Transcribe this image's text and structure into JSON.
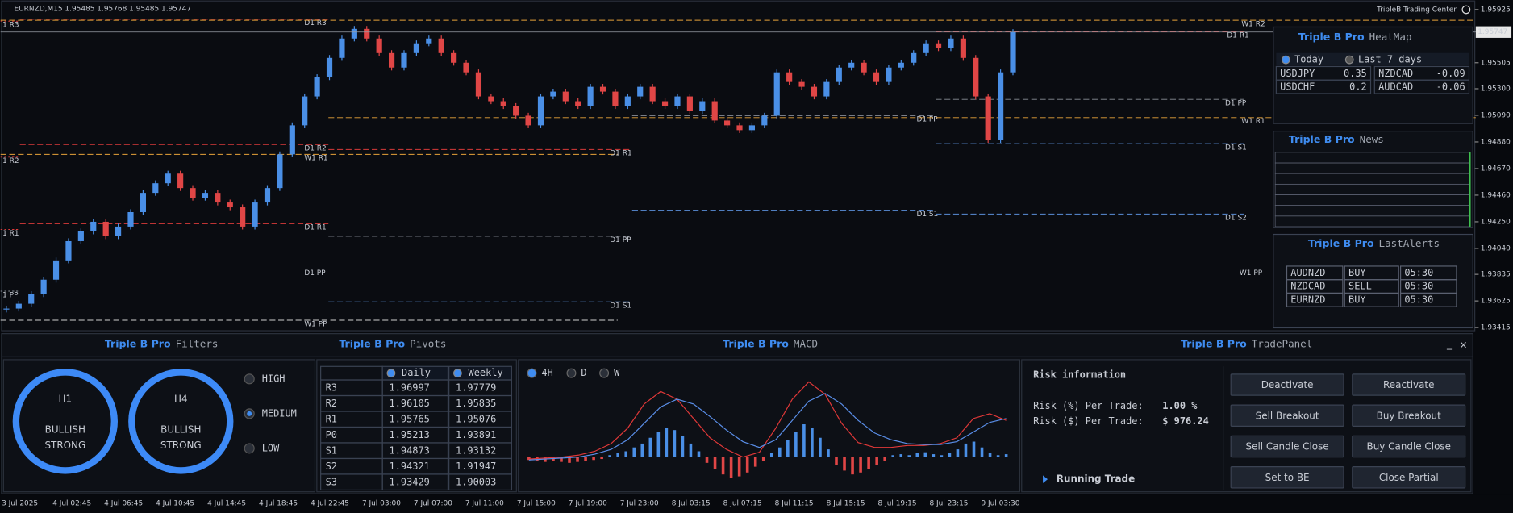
{
  "chart_header": "EURNZD,M15 1.95485 1.95768 1.95485 1.95747",
  "brand": "TripleB Trading Center",
  "price_chart": {
    "type": "candlestick",
    "closes": [
      1.93565,
      1.93603,
      1.93679,
      1.93793,
      1.93945,
      1.94097,
      1.94174,
      1.9425,
      1.94136,
      1.94212,
      1.94326,
      1.94478,
      1.94554,
      1.9463,
      1.94516,
      1.9444,
      1.94478,
      1.94402,
      1.94364,
      1.94212,
      1.94402,
      1.94516,
      1.94782,
      1.95011,
      1.95239,
      1.95391,
      1.95543,
      1.95696,
      1.95772,
      1.95696,
      1.95581,
      1.95467,
      1.95581,
      1.95658,
      1.95696,
      1.95581,
      1.95505,
      1.95429,
      1.95239,
      1.95201,
      1.95163,
      1.95087,
      1.95011,
      1.95239,
      1.95277,
      1.95201,
      1.95163,
      1.95315,
      1.95277,
      1.95163,
      1.95239,
      1.95315,
      1.95201,
      1.95163,
      1.95239,
      1.95125,
      1.95201,
      1.95049,
      1.95011,
      1.94973,
      1.95011,
      1.95087,
      1.95429,
      1.95353,
      1.95315,
      1.95239,
      1.95353,
      1.95467,
      1.95505,
      1.95429,
      1.95353,
      1.95467,
      1.95505,
      1.95581,
      1.95658,
      1.9562,
      1.95696,
      1.95543,
      1.95239,
      1.94896,
      1.95429,
      1.95747
    ],
    "up_color": "#4a8fe6",
    "down_color": "#e04646",
    "ylim": [
      1.9339,
      1.96
    ],
    "yticks": [
      1.95925,
      1.95505,
      {
        "value": 1.953,
        "label": "1.95300"
      },
      {
        "value": 1.9509,
        "label": "1.95090"
      },
      {
        "value": 1.9488,
        "label": "1.94880"
      },
      {
        "value": 1.9467,
        "label": "1.94670"
      },
      {
        "value": 1.9446,
        "label": "1.94460"
      },
      {
        "value": 1.9425,
        "label": "1.94250"
      },
      {
        "value": 1.9404,
        "label": "1.94040"
      },
      1.93835,
      1.93625,
      1.93415
    ],
    "last_price": 1.95747,
    "x_labels": [
      "3 Jul 2025",
      "4 Jul 02:45",
      "4 Jul 06:45",
      "4 Jul 10:45",
      "4 Jul 14:45",
      "4 Jul 18:45",
      "4 Jul 22:45",
      "7 Jul 03:00",
      "7 Jul 07:00",
      "7 Jul 11:00",
      "7 Jul 15:00",
      "7 Jul 19:00",
      "7 Jul 23:00",
      "8 Jul 03:15",
      "8 Jul 07:15",
      "8 Jul 11:15",
      "8 Jul 15:15",
      "8 Jul 19:15",
      "8 Jul 23:15",
      "9 Jul 03:30"
    ],
    "levels": [
      {
        "label": "1 R3",
        "price": 1.95833,
        "color": "#d93a3a"
      },
      {
        "label": "1 R2",
        "price": 1.9476,
        "color": "#d93a3a"
      },
      {
        "label": "1 R1",
        "price": 1.94189,
        "color": "#d93a3a"
      },
      {
        "label": "1 PP",
        "price": 1.93702,
        "color": "#8a8f98"
      },
      {
        "label": "D1 R3",
        "price": 1.95848,
        "color": "#d93a3a"
      },
      {
        "label": "D1 R2",
        "price": 1.94859,
        "color": "#d93a3a"
      },
      {
        "label": "D1 R1",
        "price": 1.94234,
        "color": "#d93a3a"
      },
      {
        "label": "D1 PP",
        "price": 1.93877,
        "color": "#8a8f98"
      },
      {
        "label": "W1 R1",
        "price": 1.94782,
        "color": "#e8a23a"
      },
      {
        "label": "W1 PP",
        "price": 1.93473,
        "color": "#d0d0d0"
      },
      {
        "label": "D1 R1",
        "price": 1.9482,
        "color": "#d93a3a"
      },
      {
        "label": "D1 PP",
        "price": 1.94136,
        "color": "#8a8f98"
      },
      {
        "label": "D1 S1",
        "price": 1.93618,
        "color": "#5b8fd9"
      },
      {
        "label": "W1 R2",
        "price": 1.9584,
        "color": "#e8a23a"
      },
      {
        "label": "D1 PP",
        "price": 1.95087,
        "color": "#8a8f98"
      },
      {
        "label": "D1 S1",
        "price": 1.94341,
        "color": "#5b8fd9"
      },
      {
        "label": "W1 R1",
        "price": 1.95072,
        "color": "#e8a23a"
      },
      {
        "label": "D1 R1",
        "price": 1.95749,
        "color": "#d93a3a"
      },
      {
        "label": "D1 PP",
        "price": 1.95216,
        "color": "#8a8f98"
      },
      {
        "label": "D1 S1",
        "price": 1.94866,
        "color": "#5b8fd9"
      },
      {
        "label": "D1 S2",
        "price": 1.94311,
        "color": "#5b8fd9"
      },
      {
        "label": "W1 PP",
        "price": 1.93877,
        "color": "#d0d0d0"
      }
    ]
  },
  "brand_name": "Triple B Pro",
  "heatmap": {
    "title": "HeatMap",
    "options": [
      "Today",
      "Last 7 days"
    ],
    "rows": [
      [
        {
          "pair": "USDJPY",
          "value": 0.35
        },
        {
          "pair": "NZDCAD",
          "value": -0.09
        }
      ],
      [
        {
          "pair": "USDCHF",
          "value": 0.2
        },
        {
          "pair": "AUDCAD",
          "value": -0.06
        }
      ]
    ]
  },
  "news": {
    "title": "News"
  },
  "alerts": {
    "title": "LastAlerts",
    "rows": [
      [
        "AUDNZD",
        "BUY",
        "05:30"
      ],
      [
        "NZDCAD",
        "SELL",
        "05:30"
      ],
      [
        "EURNZD",
        "BUY",
        "05:30"
      ]
    ]
  },
  "filters": {
    "title": "Filters",
    "gauges": [
      {
        "tf": "H1",
        "trend": "BULLISH",
        "strength": "STRONG"
      },
      {
        "tf": "H4",
        "trend": "BULLISH",
        "strength": "STRONG"
      }
    ],
    "options": [
      "HIGH",
      "MEDIUM",
      "LOW"
    ],
    "selected": "MEDIUM"
  },
  "pivots": {
    "title": "Pivots",
    "columns": [
      "Daily",
      "Weekly"
    ],
    "rows": [
      [
        "R3",
        1.96997,
        1.97779
      ],
      [
        "R2",
        1.96105,
        1.95835
      ],
      [
        "R1",
        1.95765,
        1.95076
      ],
      [
        "P0",
        1.95213,
        1.93891
      ],
      [
        "S1",
        1.94873,
        1.93132
      ],
      [
        "S2",
        1.94321,
        1.91947
      ],
      [
        "S3",
        1.93429,
        1.90003
      ]
    ]
  },
  "macd": {
    "title": "MACD",
    "timeframes": [
      "4H",
      "D",
      "W"
    ],
    "histogram": [
      -3,
      -4,
      -5,
      -4,
      -5,
      -6,
      -5,
      -4,
      -3,
      -2,
      2,
      4,
      6,
      10,
      14,
      20,
      26,
      30,
      28,
      22,
      14,
      6,
      -6,
      -12,
      -18,
      -22,
      -20,
      -16,
      -10,
      -4,
      4,
      10,
      18,
      26,
      34,
      30,
      20,
      8,
      -8,
      -14,
      -18,
      -16,
      -12,
      -8,
      -4,
      2,
      3,
      2,
      4,
      5,
      3,
      2,
      4,
      8,
      14,
      16,
      10,
      4,
      2,
      3
    ],
    "macd_line": [
      -2,
      -1,
      0,
      2,
      6,
      14,
      30,
      55,
      68,
      60,
      40,
      20,
      8,
      0,
      5,
      30,
      60,
      78,
      65,
      35,
      15,
      10,
      10,
      12,
      12,
      14,
      20,
      40,
      45,
      38
    ],
    "signal_line": [
      -3,
      -2,
      -1,
      0,
      3,
      8,
      18,
      35,
      52,
      60,
      55,
      42,
      28,
      16,
      10,
      18,
      38,
      58,
      66,
      55,
      38,
      25,
      18,
      14,
      13,
      13,
      16,
      26,
      36,
      40
    ]
  },
  "trade_panel": {
    "title": "TradePanel",
    "risk_title": "Risk information",
    "risk_pct_label": "Risk (%) Per Trade:",
    "risk_pct": "1.00 %",
    "risk_usd_label": "Risk ($) Per Trade:",
    "risk_usd": "$ 976.24",
    "running": "Running Trade",
    "buttons": [
      "Deactivate",
      "Reactivate",
      "Sell Breakout",
      "Buy Breakout",
      "Sell Candle Close",
      "Buy Candle Close",
      "Set to BE",
      "Close Partial"
    ]
  }
}
